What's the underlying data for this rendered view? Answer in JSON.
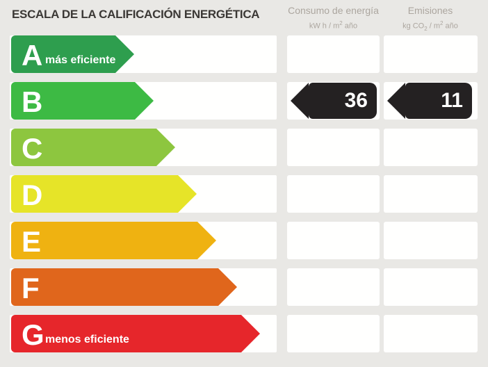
{
  "title": "ESCALA DE LA CALIFICACIÓN ENERGÉTICA",
  "columns": {
    "consumo": {
      "name": "Consumo de energía",
      "unit_a": "kW h / m",
      "unit_sup": "2",
      "unit_b": " año"
    },
    "emisiones": {
      "name": "Emisiones",
      "unit_a": "kg CO",
      "unit_sub": "2",
      "unit_b": " / m",
      "unit_sup": "2",
      "unit_c": " año"
    }
  },
  "scale": {
    "ratings": [
      {
        "letter": "A",
        "note": "más eficiente",
        "color": "#2E9E4E",
        "arrow_width": 177
      },
      {
        "letter": "B",
        "color": "#3DBA44",
        "arrow_width": 205
      },
      {
        "letter": "C",
        "color": "#8DC63F",
        "arrow_width": 236
      },
      {
        "letter": "D",
        "color": "#E6E428",
        "arrow_width": 267
      },
      {
        "letter": "E",
        "color": "#EFB211",
        "arrow_width": 295
      },
      {
        "letter": "F",
        "color": "#E0661C",
        "arrow_width": 325
      },
      {
        "letter": "G",
        "note": "menos eficiente",
        "color": "#E6262B",
        "arrow_width": 358
      }
    ]
  },
  "result": {
    "rating": "B",
    "consumo_value": "36",
    "emisiones_value": "11",
    "badge_color": "#242122"
  },
  "chart_data": {
    "type": "bar",
    "orientation": "horizontal",
    "title": "ESCALA DE LA CALIFICACIÓN ENERGÉTICA",
    "categories": [
      "A",
      "B",
      "C",
      "D",
      "E",
      "F",
      "G"
    ],
    "series": [
      {
        "name": "arrow_length_px",
        "values": [
          177,
          205,
          236,
          267,
          295,
          325,
          358
        ]
      }
    ],
    "bar_colors": [
      "#2E9E4E",
      "#3DBA44",
      "#8DC63F",
      "#E6E428",
      "#EFB211",
      "#E0661C",
      "#E6262B"
    ],
    "annotations": [
      "A: más eficiente",
      "G: menos eficiente"
    ],
    "selected_rating": "B",
    "values": {
      "consumo_de_energia_kwh_m2_ano": 36,
      "emisiones_kg_co2_m2_ano": 11
    },
    "value_columns": [
      "Consumo de energía (kW h / m² año)",
      "Emisiones (kg CO₂ / m² año)"
    ],
    "legend_position": "none",
    "grid": false
  }
}
